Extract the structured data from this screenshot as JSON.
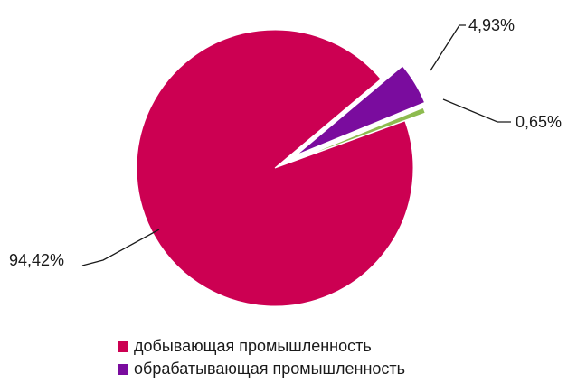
{
  "chart_data": {
    "type": "pie",
    "series": [
      {
        "name": "добывающая промышленность",
        "value": 94.42,
        "label": "94,42%",
        "color": "#cc0052"
      },
      {
        "name": "обрабатывающая промышленность",
        "value": 4.93,
        "label": "4,93%",
        "color": "#7a0c9e"
      },
      {
        "name": "",
        "value": 0.65,
        "label": "0,65%",
        "color": "#8dbb4f"
      }
    ],
    "legend": [
      "добывающая промышленность",
      "обрабатывающая промышленность"
    ],
    "legend_position": "bottom"
  }
}
